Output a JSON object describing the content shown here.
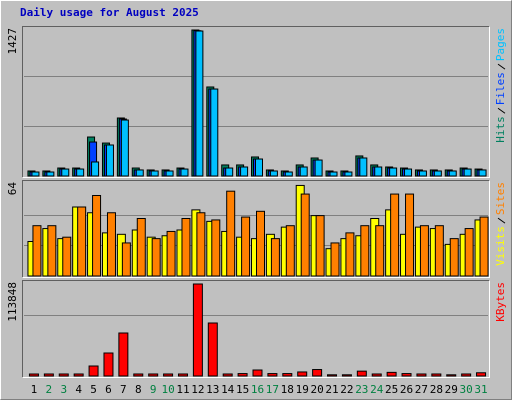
{
  "chart_data": [
    {
      "type": "bar",
      "title": "Daily usage for August 2025",
      "ylim": [
        0,
        1427
      ],
      "yticks": [
        1427
      ],
      "grid_lines": [
        489,
        977
      ],
      "series": [
        {
          "name": "Hits",
          "color": "#008060",
          "values": [
            49,
            49,
            78,
            78,
            381,
            322,
            567,
            78,
            59,
            59,
            78,
            1427,
            870,
            108,
            108,
            186,
            59,
            49,
            108,
            176,
            49,
            49,
            196,
            108,
            88,
            78,
            59,
            59,
            59,
            78,
            68
          ]
        },
        {
          "name": "Files",
          "color": "#0040ff",
          "values": [
            39,
            39,
            68,
            68,
            332,
            303,
            557,
            59,
            49,
            49,
            68,
            1420,
            850,
            78,
            88,
            166,
            49,
            39,
            88,
            156,
            39,
            39,
            176,
            88,
            78,
            68,
            49,
            49,
            49,
            68,
            59
          ]
        },
        {
          "name": "Pages",
          "color": "#00c0ff",
          "values": [
            39,
            39,
            68,
            68,
            137,
            303,
            547,
            59,
            49,
            49,
            68,
            1417,
            850,
            78,
            88,
            166,
            49,
            39,
            88,
            156,
            39,
            39,
            176,
            88,
            78,
            68,
            49,
            49,
            49,
            68,
            59
          ]
        }
      ]
    },
    {
      "type": "bar",
      "ylim": [
        0,
        64
      ],
      "yticks": [
        64
      ],
      "grid_lines": [
        21.3,
        42.7
      ],
      "series": [
        {
          "name": "Visits",
          "color": "#ffff00",
          "values": [
            24,
            33,
            26,
            48,
            44,
            30,
            29,
            32,
            27,
            28,
            32,
            46,
            38,
            31,
            27,
            26,
            29,
            34,
            63,
            42,
            19,
            26,
            28,
            40,
            46,
            29,
            34,
            33,
            22,
            29,
            39
          ]
        },
        {
          "name": "Sites",
          "color": "#ff8000",
          "values": [
            35,
            35,
            27,
            48,
            56,
            44,
            23,
            40,
            26,
            31,
            40,
            44,
            39,
            59,
            41,
            45,
            26,
            35,
            57,
            42,
            23,
            30,
            35,
            35,
            57,
            57,
            35,
            35,
            26,
            33,
            41
          ]
        }
      ]
    },
    {
      "type": "bar",
      "ylim": [
        0,
        113848
      ],
      "yticks": [
        113848
      ],
      "grid_lines": [
        75899
      ],
      "categories": [
        "1",
        "2",
        "3",
        "4",
        "5",
        "6",
        "7",
        "8",
        "9",
        "10",
        "11",
        "12",
        "13",
        "14",
        "15",
        "16",
        "17",
        "18",
        "19",
        "20",
        "21",
        "22",
        "23",
        "24",
        "25",
        "26",
        "27",
        "28",
        "29",
        "30",
        "31"
      ],
      "category_colors": [
        "#000000",
        "#008040",
        "#008040",
        "#000000",
        "#000000",
        "#000000",
        "#000000",
        "#000000",
        "#008040",
        "#008040",
        "#000000",
        "#000000",
        "#000000",
        "#000000",
        "#000000",
        "#008040",
        "#008040",
        "#000000",
        "#000000",
        "#000000",
        "#000000",
        "#000000",
        "#008040",
        "#008040",
        "#000000",
        "#000000",
        "#000000",
        "#000000",
        "#000000",
        "#008040",
        "#008040"
      ],
      "series": [
        {
          "name": "KBytes",
          "color": "#ff0000",
          "values": [
            2475,
            2500,
            2500,
            2500,
            12375,
            28462,
            53212,
            2500,
            2500,
            2500,
            2500,
            113848,
            65587,
            2500,
            3000,
            7425,
            3000,
            3000,
            5000,
            8000,
            1500,
            1500,
            6000,
            2500,
            4500,
            3000,
            2500,
            2500,
            1500,
            2500,
            4000
          ]
        }
      ]
    }
  ]
}
